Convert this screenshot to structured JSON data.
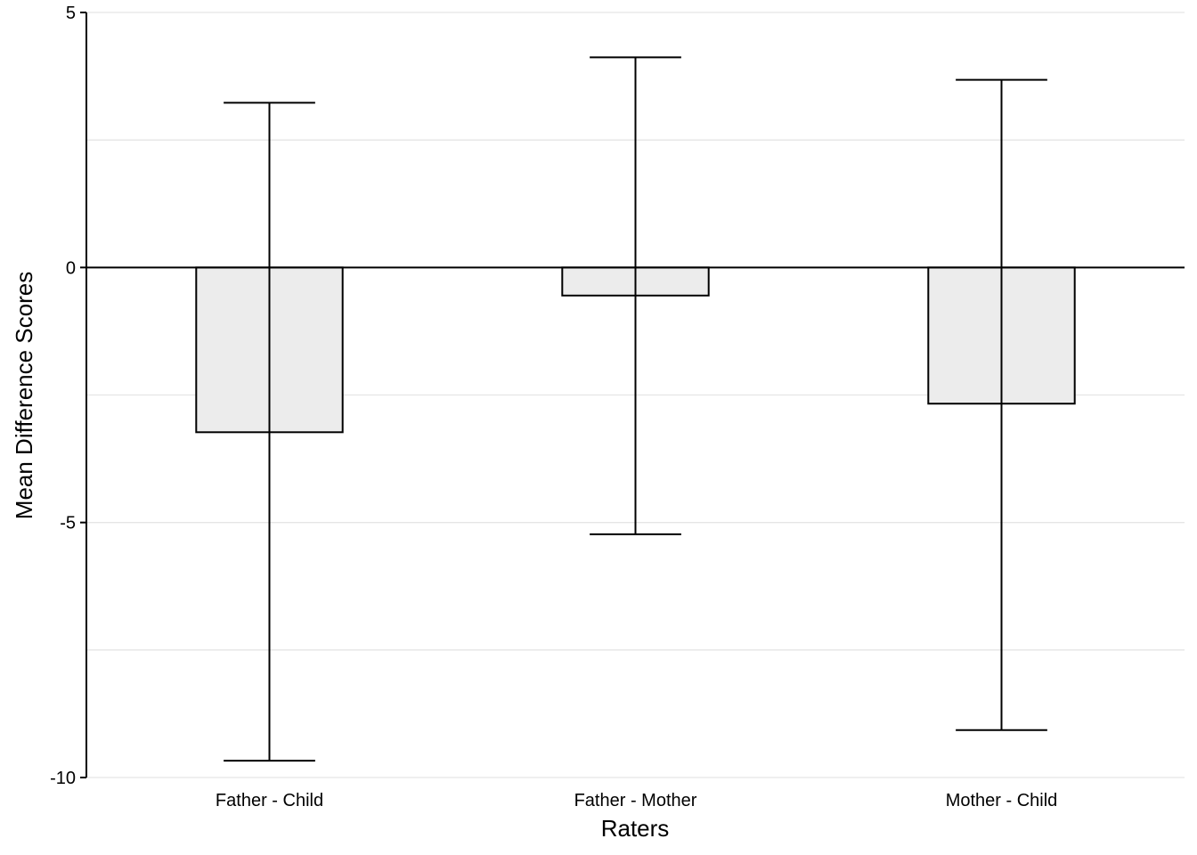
{
  "chart_data": {
    "type": "bar",
    "title": "",
    "xlabel": "Raters",
    "ylabel": "Mean Difference Scores",
    "categories": [
      "Father - Child",
      "Father - Mother",
      "Mother - Child"
    ],
    "values": [
      -3.23,
      -0.55,
      -2.67
    ],
    "error_bars": [
      {
        "lower": -9.67,
        "upper": 3.23
      },
      {
        "lower": -5.23,
        "upper": 4.12
      },
      {
        "lower": -9.07,
        "upper": 3.68
      }
    ],
    "ylim": [
      -10,
      5
    ],
    "yticks": [
      -10,
      -5,
      0,
      5
    ],
    "ytick_labels": [
      "-10",
      "-5",
      "0",
      "5"
    ],
    "grid": true,
    "legend": "none",
    "colors": {
      "bar_fill": "#ececec",
      "bar_stroke": "#000000",
      "grid": "#e5e5e5",
      "axis": "#000000"
    }
  }
}
